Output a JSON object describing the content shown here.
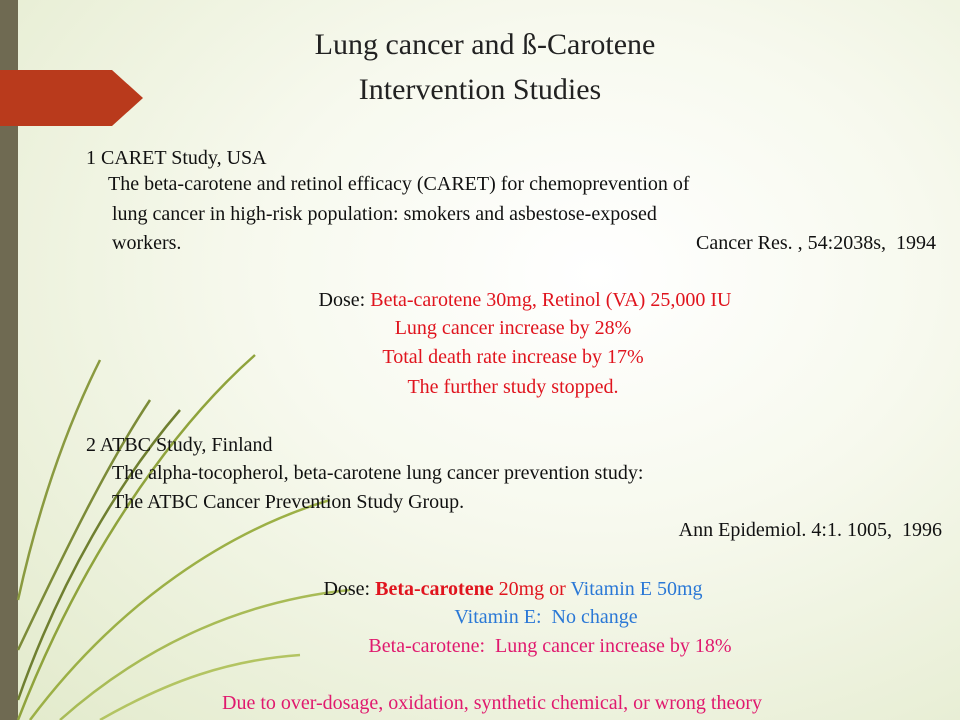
{
  "header": {
    "title": [
      "Lung cancer and ß-Carotene",
      "Intervention Studies"
    ]
  },
  "sections": [
    {
      "heading": "1 CARET Study, USA",
      "description": [
        "The beta-carotene and retinol efficacy (CARET) for chemoprevention of",
        "lung cancer in high-risk population: smokers and asbestose-exposed",
        "workers."
      ],
      "citation": "Cancer Res. , 54:2038s,  1994",
      "dose": [
        "Dose: ",
        "Beta-carotene 30mg, Retinol (VA) 25,000 IU"
      ],
      "results": [
        "Lung cancer increase by 28%",
        "Total death rate increase by 17%",
        "The further study stopped."
      ]
    },
    {
      "heading": "2 ATBC Study, Finland",
      "description": [
        "The alpha-tocopherol, beta-carotene lung cancer prevention study:",
        "The ATBC Cancer Prevention Study Group."
      ],
      "citation": "Ann Epidemiol. 4:1. 1005,  1996",
      "dose": [
        "Dose: ",
        "Beta-carotene",
        " 20mg or ",
        "Vitamin E 50mg"
      ],
      "results": [
        "Vitamin E:  No change",
        "Beta-carotene:  Lung cancer increase by 18%"
      ]
    }
  ],
  "conclusion": "Due to over-dosage, oxidation, synthetic chemical, or wrong theory"
}
